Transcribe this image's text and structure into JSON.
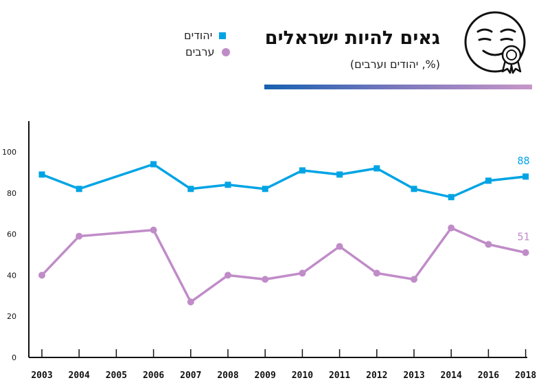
{
  "header": {
    "title": "גאים להיות ישראלים",
    "subtitle": "(%, יהודים וערבים)"
  },
  "legend": [
    {
      "label": "יהודים",
      "marker": "square",
      "color": "#00a4e4"
    },
    {
      "label": "ערבים",
      "marker": "circle",
      "color": "#c08cc8"
    }
  ],
  "icon": "smiling-face-with-medal-icon",
  "chart_data": {
    "type": "line",
    "categories": [
      "2003",
      "2004",
      "2005",
      "2006",
      "2007",
      "2008",
      "2009",
      "2010",
      "2011",
      "2012",
      "2013",
      "2014",
      "2016",
      "2018"
    ],
    "series": [
      {
        "name": "יהודים",
        "color": "#00a4e4",
        "marker": "square",
        "values": [
          89,
          82,
          null,
          94,
          82,
          84,
          82,
          91,
          89,
          92,
          82,
          78,
          86,
          88
        ]
      },
      {
        "name": "ערבים",
        "color": "#c08cc8",
        "marker": "circle",
        "values": [
          40,
          59,
          null,
          62,
          27,
          40,
          38,
          41,
          54,
          41,
          38,
          63,
          55,
          51
        ]
      }
    ],
    "end_labels": [
      "88",
      "51"
    ],
    "y_ticks": [
      "0",
      "20",
      "40",
      "60",
      "80",
      "100"
    ],
    "ylim": [
      0,
      115
    ],
    "grid": false
  }
}
